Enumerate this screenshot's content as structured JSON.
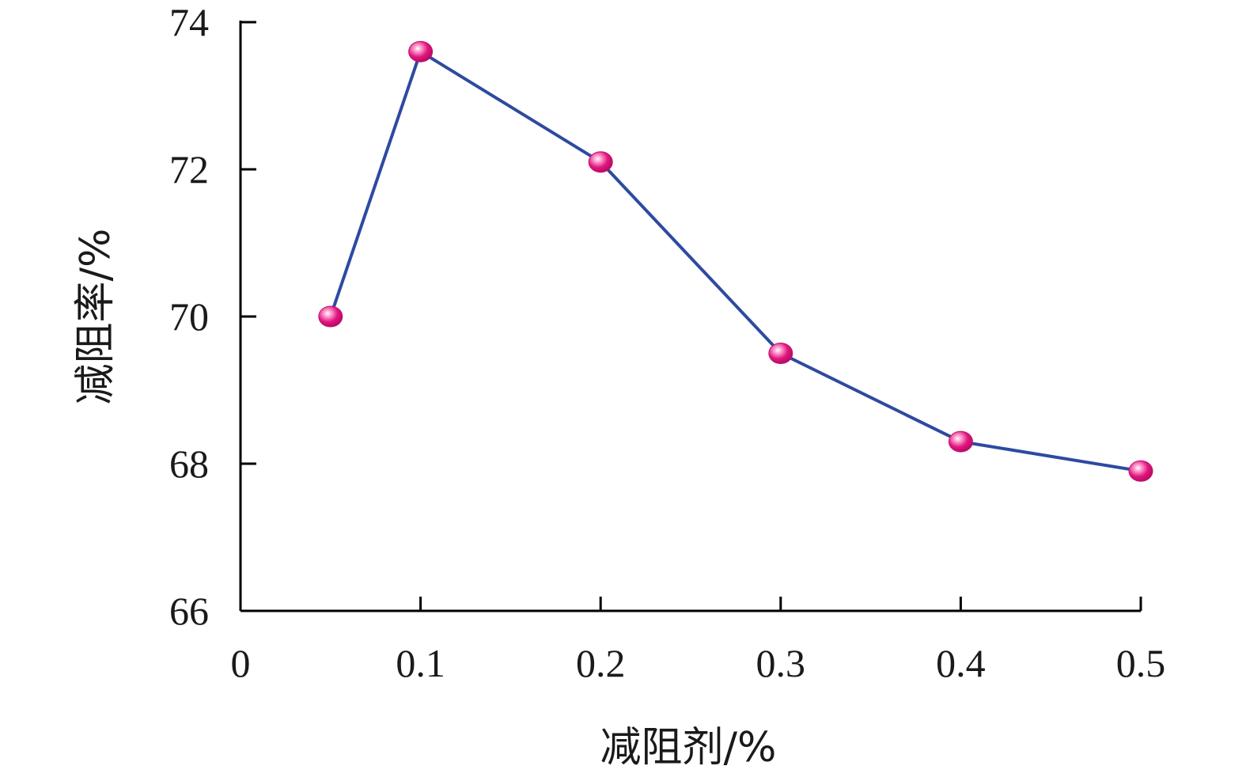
{
  "chart_data": {
    "type": "line",
    "title": "",
    "xlabel": "减阻剂/%",
    "ylabel": "减阻率/%",
    "xlim": [
      0,
      0.5
    ],
    "ylim": [
      66,
      74
    ],
    "x_ticks": [
      0,
      0.1,
      0.2,
      0.3,
      0.4,
      0.5
    ],
    "x_tick_labels": [
      "0",
      "0.1",
      "0.2",
      "0.3",
      "0.4",
      "0.5"
    ],
    "y_ticks": [
      66,
      68,
      70,
      72,
      74
    ],
    "y_tick_labels": [
      "66",
      "68",
      "70",
      "72",
      "74"
    ],
    "grid": false,
    "legend": "none",
    "series": [
      {
        "x": [
          0.05,
          0.1,
          0.2,
          0.3,
          0.4,
          0.5
        ],
        "y": [
          70.0,
          73.6,
          72.1,
          69.5,
          68.3,
          67.9
        ],
        "line_color": "#2e4aa0",
        "marker_color": "#e0157e",
        "marker_highlight": "#ff9fd0"
      }
    ]
  }
}
